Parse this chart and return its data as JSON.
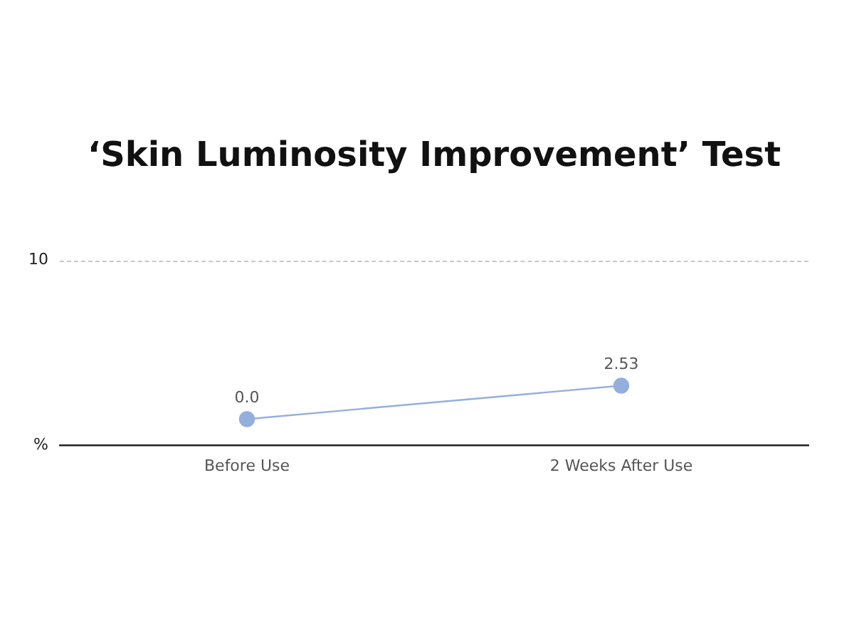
{
  "chart_data": {
    "type": "line",
    "title": "‘Skin Luminosity Improvement’ Test",
    "ylabel": "%",
    "annotations": [
      "10"
    ],
    "categories": [
      "Before Use",
      "2 Weeks After Use"
    ],
    "series": [
      {
        "color": "#94afdc",
        "values": [
          0.0,
          2.53
        ],
        "value_labels": [
          "0.0",
          "2.53"
        ]
      }
    ],
    "legend": false,
    "marker": "circle",
    "line_style": "solid"
  }
}
